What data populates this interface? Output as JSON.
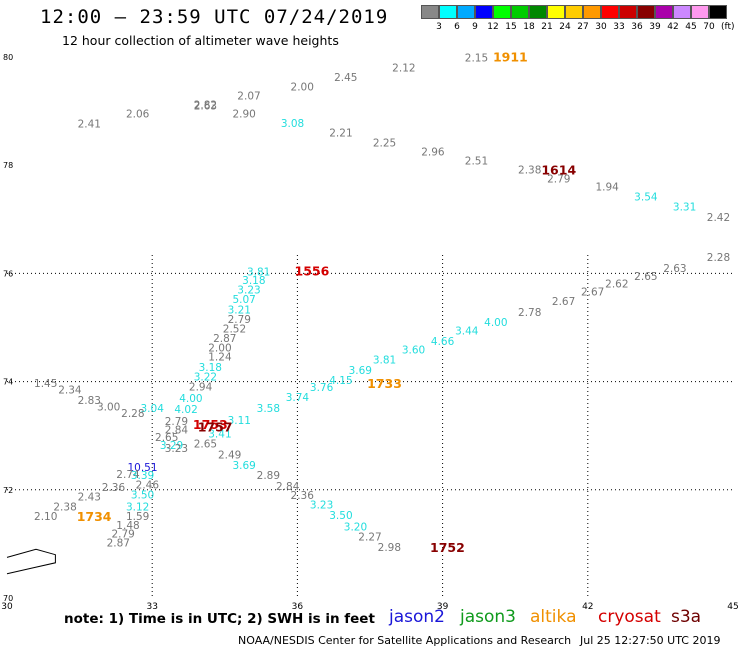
{
  "header": {
    "title": "12:00 — 23:59 UTC 07/24/2019",
    "subtitle": "12 hour collection of altimeter wave heights"
  },
  "footer": {
    "note": "note:  1) Time is in UTC;  2) SWH is in feet",
    "credit": "NOAA/NESDIS Center for Satellite Applications and Research",
    "timestamp": "Jul 25 12:27:50 UTC 2019"
  },
  "satellites": [
    {
      "name": "jason2",
      "color": "#1a16d8"
    },
    {
      "name": "jason3",
      "color": "#0f9a1c"
    },
    {
      "name": "altika",
      "color": "#f09000"
    },
    {
      "name": "cryosat",
      "color": "#d40000"
    },
    {
      "name": "s3a",
      "color": "#6e0000"
    }
  ],
  "legend": {
    "units": "(ft)",
    "bins": [
      {
        "label": "3",
        "color": "#888888"
      },
      {
        "label": "6",
        "color": "#00ffff"
      },
      {
        "label": "9",
        "color": "#00aaff"
      },
      {
        "label": "12",
        "color": "#0000ff"
      },
      {
        "label": "15",
        "color": "#00ff00"
      },
      {
        "label": "18",
        "color": "#00cc00"
      },
      {
        "label": "21",
        "color": "#008800"
      },
      {
        "label": "24",
        "color": "#ffff00"
      },
      {
        "label": "27",
        "color": "#ffcc00"
      },
      {
        "label": "30",
        "color": "#ff9900"
      },
      {
        "label": "33",
        "color": "#ff0000"
      },
      {
        "label": "36",
        "color": "#cc0000"
      },
      {
        "label": "39",
        "color": "#880000"
      },
      {
        "label": "42",
        "color": "#aa00aa"
      },
      {
        "label": "45",
        "color": "#cc88ff"
      },
      {
        "label": "70",
        "color": "#ff99ee"
      },
      {
        "label": "",
        "color": "#000000"
      }
    ]
  },
  "map": {
    "lon_range": [
      30,
      45
    ],
    "lat_range": [
      70,
      80
    ],
    "grid": true,
    "lat_ticks": [
      "80",
      "78",
      "76",
      "74",
      "72",
      "70"
    ],
    "lon_ticks": [
      "30",
      "33",
      "36",
      "39",
      "42",
      "45"
    ],
    "observations": [
      {
        "text": "2.15",
        "lon": 39.7,
        "lat": 79.92,
        "color": "#777777"
      },
      {
        "text": "2.12",
        "lon": 38.2,
        "lat": 79.73,
        "color": "#777777"
      },
      {
        "text": "2.45",
        "lon": 37.0,
        "lat": 79.56,
        "color": "#777777"
      },
      {
        "text": "2.00",
        "lon": 36.1,
        "lat": 79.38,
        "color": "#777777"
      },
      {
        "text": "2.07",
        "lon": 35.0,
        "lat": 79.21,
        "color": "#777777"
      },
      {
        "text": "2.82",
        "lon": 34.1,
        "lat": 79.05,
        "color": "#777777"
      },
      {
        "text": "2.63",
        "lon": 34.1,
        "lat": 79.03,
        "color": "#777777"
      },
      {
        "text": "2.90",
        "lon": 34.9,
        "lat": 78.88,
        "color": "#777777"
      },
      {
        "text": "2.06",
        "lon": 32.7,
        "lat": 78.88,
        "color": "#777777"
      },
      {
        "text": "2.41",
        "lon": 31.7,
        "lat": 78.7,
        "color": "#777777"
      },
      {
        "text": "3.08",
        "lon": 35.9,
        "lat": 78.71,
        "color": "#22dddd"
      },
      {
        "text": "2.21",
        "lon": 36.9,
        "lat": 78.53,
        "color": "#777777"
      },
      {
        "text": "2.25",
        "lon": 37.8,
        "lat": 78.35,
        "color": "#777777"
      },
      {
        "text": "2.96",
        "lon": 38.8,
        "lat": 78.18,
        "color": "#777777"
      },
      {
        "text": "2.51",
        "lon": 39.7,
        "lat": 78.01,
        "color": "#777777"
      },
      {
        "text": "2.38",
        "lon": 40.8,
        "lat": 77.85,
        "color": "#777777"
      },
      {
        "text": "2.79",
        "lon": 41.4,
        "lat": 77.68,
        "color": "#777777"
      },
      {
        "text": "1.94",
        "lon": 42.4,
        "lat": 77.53,
        "color": "#777777"
      },
      {
        "text": "3.54",
        "lon": 43.2,
        "lat": 77.35,
        "color": "#22dddd"
      },
      {
        "text": "3.31",
        "lon": 44.0,
        "lat": 77.16,
        "color": "#22dddd"
      },
      {
        "text": "2.42",
        "lon": 44.7,
        "lat": 76.97,
        "color": "#777777"
      },
      {
        "text": "2.28",
        "lon": 44.7,
        "lat": 76.23,
        "color": "#777777"
      },
      {
        "text": "2.63",
        "lon": 43.8,
        "lat": 76.03,
        "color": "#777777"
      },
      {
        "text": "2.65",
        "lon": 43.2,
        "lat": 75.88,
        "color": "#777777"
      },
      {
        "text": "2.62",
        "lon": 42.6,
        "lat": 75.74,
        "color": "#777777"
      },
      {
        "text": "2.67",
        "lon": 42.1,
        "lat": 75.59,
        "color": "#777777"
      },
      {
        "text": "2.67",
        "lon": 41.5,
        "lat": 75.42,
        "color": "#777777"
      },
      {
        "text": "2.78",
        "lon": 40.8,
        "lat": 75.21,
        "color": "#777777"
      },
      {
        "text": "4.00",
        "lon": 40.1,
        "lat": 75.03,
        "color": "#22dddd"
      },
      {
        "text": "3.44",
        "lon": 39.5,
        "lat": 74.87,
        "color": "#22dddd"
      },
      {
        "text": "4.66",
        "lon": 39.0,
        "lat": 74.68,
        "color": "#22dddd"
      },
      {
        "text": "3.60",
        "lon": 38.4,
        "lat": 74.52,
        "color": "#22dddd"
      },
      {
        "text": "3.81",
        "lon": 37.8,
        "lat": 74.33,
        "color": "#22dddd"
      },
      {
        "text": "3.69",
        "lon": 37.3,
        "lat": 74.14,
        "color": "#22dddd"
      },
      {
        "text": "4.15",
        "lon": 36.9,
        "lat": 73.96,
        "color": "#22dddd"
      },
      {
        "text": "3.76",
        "lon": 36.5,
        "lat": 73.83,
        "color": "#22dddd"
      },
      {
        "text": "3.74",
        "lon": 36.0,
        "lat": 73.64,
        "color": "#22dddd"
      },
      {
        "text": "3.58",
        "lon": 35.4,
        "lat": 73.44,
        "color": "#22dddd"
      },
      {
        "text": "3.11",
        "lon": 34.8,
        "lat": 73.22,
        "color": "#22dddd"
      },
      {
        "text": "3.41",
        "lon": 34.4,
        "lat": 72.97,
        "color": "#22dddd"
      },
      {
        "text": "3.81",
        "lon": 35.2,
        "lat": 75.96,
        "color": "#22dddd"
      },
      {
        "text": "3.18",
        "lon": 35.1,
        "lat": 75.8,
        "color": "#22dddd"
      },
      {
        "text": "3.23",
        "lon": 35.0,
        "lat": 75.63,
        "color": "#22dddd"
      },
      {
        "text": "5.07",
        "lon": 34.9,
        "lat": 75.45,
        "color": "#22dddd"
      },
      {
        "text": "3.21",
        "lon": 34.8,
        "lat": 75.26,
        "color": "#22dddd"
      },
      {
        "text": "2.79",
        "lon": 34.8,
        "lat": 75.08,
        "color": "#777777"
      },
      {
        "text": "2.52",
        "lon": 34.7,
        "lat": 74.91,
        "color": "#777777"
      },
      {
        "text": "2.87",
        "lon": 34.5,
        "lat": 74.73,
        "color": "#777777"
      },
      {
        "text": "2.00",
        "lon": 34.4,
        "lat": 74.56,
        "color": "#777777"
      },
      {
        "text": "1.24",
        "lon": 34.4,
        "lat": 74.39,
        "color": "#777777"
      },
      {
        "text": "3.18",
        "lon": 34.2,
        "lat": 74.2,
        "color": "#22dddd"
      },
      {
        "text": "3.22",
        "lon": 34.1,
        "lat": 74.02,
        "color": "#22dddd"
      },
      {
        "text": "2.94",
        "lon": 34.0,
        "lat": 73.84,
        "color": "#777777"
      },
      {
        "text": "4.00",
        "lon": 33.8,
        "lat": 73.62,
        "color": "#22dddd"
      },
      {
        "text": "4.02",
        "lon": 33.7,
        "lat": 73.42,
        "color": "#22dddd"
      },
      {
        "text": "3.04",
        "lon": 33.0,
        "lat": 73.44,
        "color": "#22dddd"
      },
      {
        "text": "2.79",
        "lon": 33.5,
        "lat": 73.2,
        "color": "#777777"
      },
      {
        "text": "2.84",
        "lon": 33.5,
        "lat": 73.04,
        "color": "#777777"
      },
      {
        "text": "2.65",
        "lon": 33.3,
        "lat": 72.9,
        "color": "#777777"
      },
      {
        "text": "3.29",
        "lon": 33.4,
        "lat": 72.75,
        "color": "#22dddd"
      },
      {
        "text": "3.23",
        "lon": 33.5,
        "lat": 72.7,
        "color": "#777777"
      },
      {
        "text": "2.65",
        "lon": 34.1,
        "lat": 72.78,
        "color": "#777777"
      },
      {
        "text": "2.49",
        "lon": 34.6,
        "lat": 72.58,
        "color": "#777777"
      },
      {
        "text": "3.69",
        "lon": 34.9,
        "lat": 72.38,
        "color": "#22dddd"
      },
      {
        "text": "2.89",
        "lon": 35.4,
        "lat": 72.2,
        "color": "#777777"
      },
      {
        "text": "2.84",
        "lon": 35.8,
        "lat": 72.0,
        "color": "#777777"
      },
      {
        "text": "2.36",
        "lon": 36.1,
        "lat": 71.83,
        "color": "#777777"
      },
      {
        "text": "3.23",
        "lon": 36.5,
        "lat": 71.65,
        "color": "#22dddd"
      },
      {
        "text": "3.50",
        "lon": 36.9,
        "lat": 71.46,
        "color": "#22dddd"
      },
      {
        "text": "3.20",
        "lon": 37.2,
        "lat": 71.25,
        "color": "#22dddd"
      },
      {
        "text": "2.27",
        "lon": 37.5,
        "lat": 71.06,
        "color": "#777777"
      },
      {
        "text": "2.98",
        "lon": 37.9,
        "lat": 70.87,
        "color": "#777777"
      },
      {
        "text": "10.51",
        "lon": 32.8,
        "lat": 72.35,
        "color": "#1a16d8"
      },
      {
        "text": "2.74",
        "lon": 32.5,
        "lat": 72.22,
        "color": "#777777"
      },
      {
        "text": "3.39",
        "lon": 32.8,
        "lat": 72.2,
        "color": "#22dddd"
      },
      {
        "text": "2.46",
        "lon": 32.9,
        "lat": 72.02,
        "color": "#777777"
      },
      {
        "text": "2.36",
        "lon": 32.2,
        "lat": 71.98,
        "color": "#777777"
      },
      {
        "text": "3.50",
        "lon": 32.8,
        "lat": 71.84,
        "color": "#22dddd"
      },
      {
        "text": "2.43",
        "lon": 31.7,
        "lat": 71.8,
        "color": "#777777"
      },
      {
        "text": "3.12",
        "lon": 32.7,
        "lat": 71.62,
        "color": "#22dddd"
      },
      {
        "text": "2.38",
        "lon": 31.2,
        "lat": 71.62,
        "color": "#777777"
      },
      {
        "text": "1.59",
        "lon": 32.7,
        "lat": 71.44,
        "color": "#777777"
      },
      {
        "text": "2.10",
        "lon": 30.8,
        "lat": 71.44,
        "color": "#777777"
      },
      {
        "text": "1.48",
        "lon": 32.5,
        "lat": 71.28,
        "color": "#777777"
      },
      {
        "text": "2.79",
        "lon": 32.4,
        "lat": 71.12,
        "color": "#777777"
      },
      {
        "text": "2.87",
        "lon": 32.3,
        "lat": 70.95,
        "color": "#777777"
      },
      {
        "text": "1.45",
        "lon": 30.8,
        "lat": 73.9,
        "color": "#777777"
      },
      {
        "text": "2.34",
        "lon": 31.3,
        "lat": 73.78,
        "color": "#777777"
      },
      {
        "text": "2.83",
        "lon": 31.7,
        "lat": 73.59,
        "color": "#777777"
      },
      {
        "text": "3.00",
        "lon": 32.1,
        "lat": 73.47,
        "color": "#777777"
      },
      {
        "text": "2.28",
        "lon": 32.6,
        "lat": 73.35,
        "color": "#777777"
      }
    ],
    "pass_times": [
      {
        "text": "1911",
        "lon": 40.4,
        "lat": 79.92,
        "color": "#f09000"
      },
      {
        "text": "1614",
        "lon": 41.4,
        "lat": 77.83,
        "color": "#880000"
      },
      {
        "text": "1556",
        "lon": 36.3,
        "lat": 75.96,
        "color": "#d40000"
      },
      {
        "text": "1733",
        "lon": 37.8,
        "lat": 73.88,
        "color": "#f09000"
      },
      {
        "text": "1753",
        "lon": 34.2,
        "lat": 73.12,
        "color": "#d40000"
      },
      {
        "text": "1757",
        "lon": 34.3,
        "lat": 73.08,
        "color": "#880000"
      },
      {
        "text": "1734",
        "lon": 31.8,
        "lat": 71.42,
        "color": "#f09000"
      },
      {
        "text": "1752",
        "lon": 39.1,
        "lat": 70.85,
        "color": "#880000"
      }
    ],
    "coastline": [
      [
        30.0,
        70.75
      ],
      [
        30.6,
        70.9
      ],
      [
        31.0,
        70.8
      ],
      [
        31.0,
        70.65
      ],
      [
        30.5,
        70.55
      ],
      [
        30.0,
        70.45
      ]
    ]
  }
}
